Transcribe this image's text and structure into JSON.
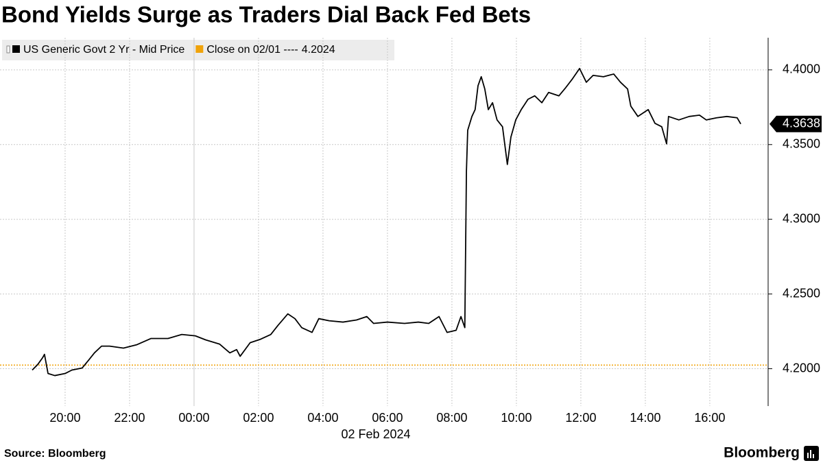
{
  "chart_data": {
    "type": "line",
    "title": "Bond Yields Surge as Traders Dial Back Fed Bets",
    "x_label": "02 Feb 2024",
    "source": "Source: Bloomberg",
    "brand": "Bloomberg",
    "x": [
      -5.02,
      -4.85,
      -4.7,
      -4.64,
      -4.53,
      -4.32,
      -4.0,
      -3.79,
      -3.47,
      -3.26,
      -3.09,
      -2.87,
      -2.62,
      -2.19,
      -1.77,
      -1.34,
      -0.81,
      -0.38,
      0.04,
      0.36,
      0.79,
      1.11,
      1.32,
      1.43,
      1.74,
      2.06,
      2.38,
      2.6,
      2.91,
      3.13,
      3.34,
      3.66,
      3.87,
      4.19,
      4.62,
      5.04,
      5.36,
      5.57,
      6.0,
      6.53,
      6.96,
      7.28,
      7.6,
      7.85,
      8.13,
      8.28,
      8.4,
      8.45,
      8.49,
      8.62,
      8.72,
      8.81,
      8.91,
      9.02,
      9.13,
      9.26,
      9.4,
      9.57,
      9.72,
      9.83,
      9.98,
      10.15,
      10.36,
      10.57,
      10.79,
      11.0,
      11.32,
      11.53,
      11.74,
      11.96,
      12.17,
      12.38,
      12.7,
      13.02,
      13.23,
      13.45,
      13.55,
      13.77,
      14.09,
      14.3,
      14.51,
      14.66,
      14.72,
      15.04,
      15.36,
      15.68,
      15.89,
      16.21,
      16.53,
      16.85,
      16.96
    ],
    "series": [
      {
        "name": "US Generic Govt 2 Yr - Mid Price",
        "color": "#000000",
        "values": [
          4.1991,
          4.2028,
          4.2073,
          4.2096,
          4.1968,
          4.1954,
          4.1968,
          4.1991,
          4.2005,
          4.206,
          4.2106,
          4.2151,
          4.2151,
          4.2138,
          4.2161,
          4.2202,
          4.2202,
          4.2229,
          4.222,
          4.2193,
          4.2165,
          4.2106,
          4.2128,
          4.2083,
          4.2174,
          4.2197,
          4.2229,
          4.2289,
          4.2367,
          4.2335,
          4.2275,
          4.2243,
          4.2335,
          4.2321,
          4.2312,
          4.2326,
          4.2349,
          4.2303,
          4.2312,
          4.2303,
          4.2312,
          4.2303,
          4.2349,
          4.2243,
          4.2257,
          4.2349,
          4.2275,
          4.3321,
          4.3596,
          4.3688,
          4.3734,
          4.3894,
          4.3954,
          4.3872,
          4.3734,
          4.378,
          4.3665,
          4.3619,
          4.3367,
          4.355,
          4.3665,
          4.3734,
          4.3803,
          4.3826,
          4.378,
          4.3849,
          4.3826,
          4.3881,
          4.394,
          4.4009,
          4.3917,
          4.3963,
          4.3954,
          4.3972,
          4.3917,
          4.3872,
          4.3757,
          4.3688,
          4.3734,
          4.3642,
          4.3619,
          4.3505,
          4.3688,
          4.3665,
          4.3688,
          4.3697,
          4.3665,
          4.3679,
          4.3688,
          4.3679,
          4.3638
        ]
      }
    ],
    "reference": {
      "label": "Close on 02/01 ----",
      "value": 4.2024,
      "color": "#f0a30a"
    },
    "xlim": [
      -6.02,
      17.81
    ],
    "xticks": [
      {
        "value": -4,
        "label": "20:00"
      },
      {
        "value": -2,
        "label": "22:00"
      },
      {
        "value": 0,
        "label": "00:00"
      },
      {
        "value": 2,
        "label": "02:00"
      },
      {
        "value": 4,
        "label": "04:00"
      },
      {
        "value": 6,
        "label": "06:00"
      },
      {
        "value": 8,
        "label": "08:00"
      },
      {
        "value": 10,
        "label": "10:00"
      },
      {
        "value": 12,
        "label": "12:00"
      },
      {
        "value": 14,
        "label": "14:00"
      },
      {
        "value": 16,
        "label": "16:00"
      }
    ],
    "ylim": [
      4.175,
      4.4215
    ],
    "yticks": [
      {
        "value": 4.2,
        "label": "4.2000"
      },
      {
        "value": 4.25,
        "label": "4.2500"
      },
      {
        "value": 4.3,
        "label": "4.3000"
      },
      {
        "value": 4.35,
        "label": "4.3500"
      },
      {
        "value": 4.4,
        "label": "4.4000"
      }
    ],
    "grid": true
  }
}
